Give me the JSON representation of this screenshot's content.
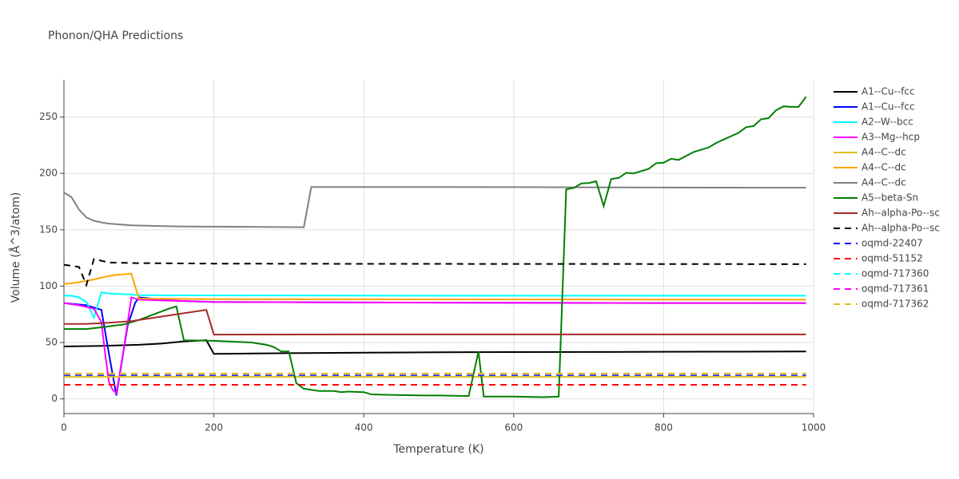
{
  "chart_data": {
    "type": "line",
    "title": "Phonon/QHA Predictions",
    "xlabel": "Temperature (K)",
    "ylabel": "Volume (Å^3/atom)",
    "xlim": [
      0,
      1000
    ],
    "ylim": [
      -13,
      283
    ],
    "xticks": [
      0,
      200,
      400,
      600,
      800,
      1000
    ],
    "yticks": [
      0,
      50,
      100,
      150,
      200,
      250
    ],
    "grid": true,
    "series": [
      {
        "name": "A1--Cu--fcc",
        "color": "#000000",
        "dash": false,
        "x": [
          0,
          50,
          100,
          130,
          160,
          190,
          200,
          300,
          400,
          500,
          600,
          700,
          800,
          900,
          990
        ],
        "values": [
          46.5,
          47,
          48,
          49,
          51,
          52,
          40,
          40.5,
          41,
          41.3,
          41.5,
          41.6,
          41.8,
          41.9,
          42
        ]
      },
      {
        "name": "A1--Cu--fcc",
        "color": "#0000ff",
        "dash": false,
        "x": [
          0,
          30,
          50,
          60,
          70,
          85,
          95,
          100,
          150,
          200,
          400,
          600,
          800,
          990
        ],
        "values": [
          85,
          83,
          79,
          40,
          3,
          65,
          85,
          90,
          87,
          86,
          85.5,
          85.2,
          85,
          85
        ]
      },
      {
        "name": "A2--W--bcc",
        "color": "#00ffff",
        "dash": false,
        "x": [
          0,
          10,
          20,
          30,
          40,
          50,
          60,
          90,
          100,
          200,
          400,
          600,
          800,
          990
        ],
        "values": [
          91.5,
          91.5,
          90,
          86,
          72,
          94.5,
          93.5,
          92.5,
          92,
          91.8,
          91.6,
          91.5,
          91.5,
          91.5
        ]
      },
      {
        "name": "A3--Mg--hcp",
        "color": "#ff00ff",
        "dash": false,
        "x": [
          0,
          20,
          40,
          50,
          55,
          60,
          65,
          70,
          80,
          90,
          100,
          200,
          400,
          600,
          800,
          990
        ],
        "values": [
          85,
          83,
          80,
          68,
          40,
          15,
          8,
          5,
          45,
          90,
          88,
          86,
          85.5,
          85.2,
          85,
          85
        ]
      },
      {
        "name": "A4--C--dc",
        "color": "#e0c020",
        "dash": false,
        "x": [
          0,
          200,
          400,
          600,
          800,
          990
        ],
        "values": [
          19.5,
          19.5,
          19.5,
          19.5,
          19.5,
          19.5
        ]
      },
      {
        "name": "A4--C--dc",
        "color": "#ffa500",
        "dash": false,
        "x": [
          0,
          10,
          20,
          40,
          60,
          70,
          90,
          100,
          200,
          400,
          600,
          800,
          990
        ],
        "values": [
          102,
          102.5,
          103.5,
          106,
          109,
          110,
          111,
          89,
          88.5,
          88.3,
          88.2,
          88.1,
          88
        ]
      },
      {
        "name": "A4--C--dc",
        "color": "#808080",
        "dash": false,
        "x": [
          0,
          10,
          20,
          30,
          40,
          50,
          60,
          90,
          150,
          200,
          320,
          330,
          400,
          600,
          800,
          990
        ],
        "values": [
          183,
          179,
          168,
          161,
          158,
          156.5,
          155.5,
          154,
          153,
          152.8,
          152.3,
          188,
          188,
          187.8,
          187.5,
          187.3
        ]
      },
      {
        "name": "A5--beta-Sn",
        "color": "#008000",
        "dash": false,
        "x": [
          0,
          30,
          50,
          80,
          100,
          120,
          140,
          150,
          160,
          200,
          250,
          270,
          280,
          290,
          300,
          310,
          320,
          340,
          360,
          370,
          380,
          400,
          410,
          440,
          480,
          500,
          540,
          553,
          560,
          600,
          640,
          660,
          670,
          680,
          690,
          700,
          710,
          720,
          730,
          740,
          750,
          760,
          780,
          790,
          800,
          810,
          820,
          840,
          860,
          870,
          880,
          900,
          910,
          920,
          930,
          940,
          950,
          960,
          970,
          980,
          990
        ],
        "values": [
          62,
          62,
          63.5,
          66,
          70,
          75,
          80,
          82,
          52,
          51.5,
          50,
          48,
          46,
          42,
          42,
          14,
          9,
          7,
          7,
          6,
          6.5,
          6,
          4,
          3.5,
          3,
          3,
          2.5,
          42,
          2,
          2,
          1.5,
          2,
          186,
          187,
          191,
          191.5,
          193,
          171,
          195,
          196,
          200.5,
          200,
          204,
          209,
          209.5,
          213,
          212,
          219,
          223,
          227,
          230,
          236,
          241,
          242,
          248,
          249,
          256,
          259.5,
          259,
          259,
          268
        ]
      },
      {
        "name": "Ah--alpha-Po--sc",
        "color": "#a52a2a",
        "dash": false,
        "x": [
          0,
          30,
          60,
          90,
          120,
          150,
          190,
          200,
          400,
          600,
          800,
          990
        ],
        "values": [
          66.5,
          66.5,
          67.5,
          69,
          72,
          75,
          79,
          57,
          57.2,
          57.2,
          57.2,
          57.2
        ]
      },
      {
        "name": "Ah--alpha-Po--sc",
        "color": "#000000",
        "dash": true,
        "x": [
          0,
          10,
          20,
          30,
          40,
          60,
          90,
          200,
          400,
          600,
          800,
          990
        ],
        "values": [
          119,
          118,
          117,
          101,
          124,
          121,
          120.5,
          120,
          119.8,
          119.7,
          119.6,
          119.5
        ]
      },
      {
        "name": "oqmd-22407",
        "color": "#0000ff",
        "dash": true,
        "x": [
          0,
          990
        ],
        "values": [
          21,
          21
        ]
      },
      {
        "name": "oqmd-51152",
        "color": "#ff0000",
        "dash": true,
        "x": [
          0,
          990
        ],
        "values": [
          12.5,
          12.5
        ]
      },
      {
        "name": "oqmd-717360",
        "color": "#00ffff",
        "dash": true,
        "x": [
          0,
          990
        ],
        "values": [
          21.5,
          21.5
        ]
      },
      {
        "name": "oqmd-717361",
        "color": "#ff00ff",
        "dash": true,
        "x": [
          0,
          990
        ],
        "values": [
          22,
          22
        ]
      },
      {
        "name": "oqmd-717362",
        "color": "#e0c020",
        "dash": true,
        "x": [
          0,
          990
        ],
        "values": [
          22.5,
          22.5
        ]
      }
    ]
  }
}
